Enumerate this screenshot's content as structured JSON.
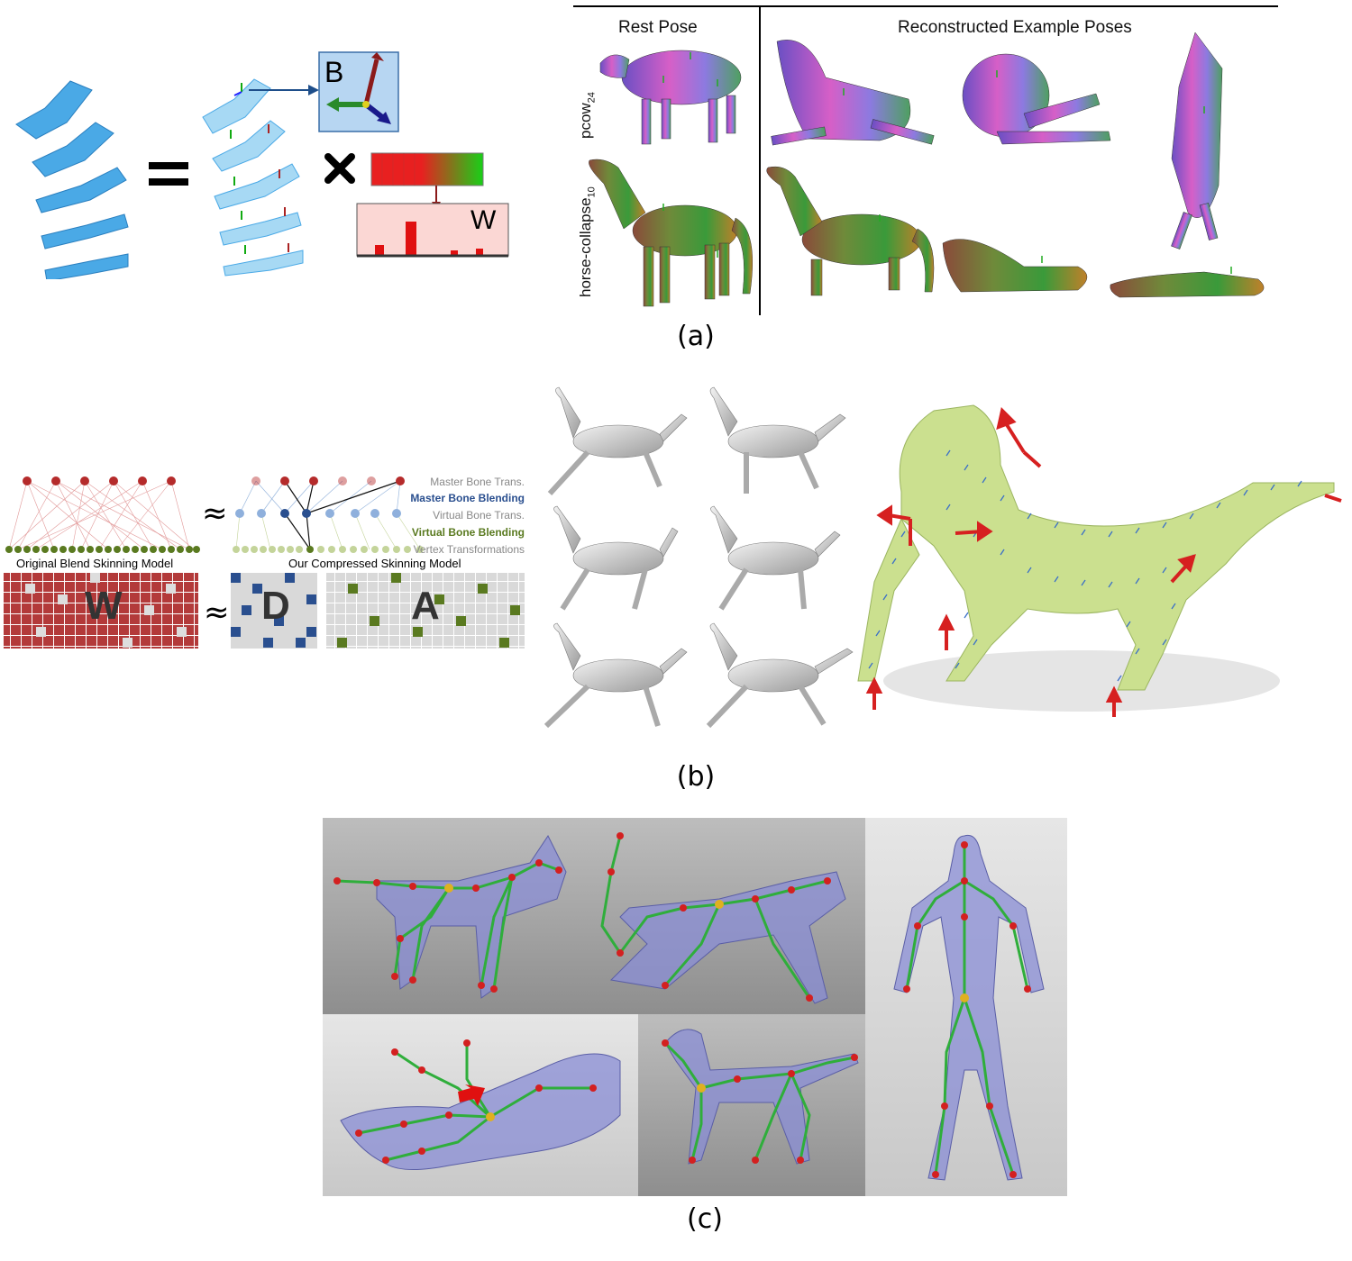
{
  "figure": {
    "panel_a": {
      "caption": "(a)",
      "equation": {
        "equals": "=",
        "times": "×",
        "matrix_b_label": "B",
        "matrix_w_label": "W"
      },
      "table_header_rest": "Rest Pose",
      "table_header_reconstructed": "Reconstructed Example Poses",
      "row_label_1": "pcow",
      "row_label_1_sub": "24",
      "row_label_2": "horse-collapse",
      "row_label_2_sub": "10"
    },
    "panel_b": {
      "caption": "(b)",
      "approx_1": "≈",
      "approx_2": "≈",
      "legend": {
        "master_bone_trans": "Master Bone Trans.",
        "master_bone_blending": "Master Bone Blending",
        "virtual_bone_trans": "Virtual Bone Trans.",
        "virtual_bone_blending": "Virtual Bone Blending",
        "vertex_transformations": "Vertex Transformations"
      },
      "colors": {
        "master_blend": "#2a4f8f",
        "virtual_blend": "#5a7a20"
      },
      "model_left_label": "Original Blend Skinning Model",
      "model_right_label": "Our Compressed Skinning Model",
      "matrix_w": "W",
      "matrix_d": "D",
      "matrix_a": "A"
    },
    "panel_c": {
      "caption": "(c)"
    }
  }
}
